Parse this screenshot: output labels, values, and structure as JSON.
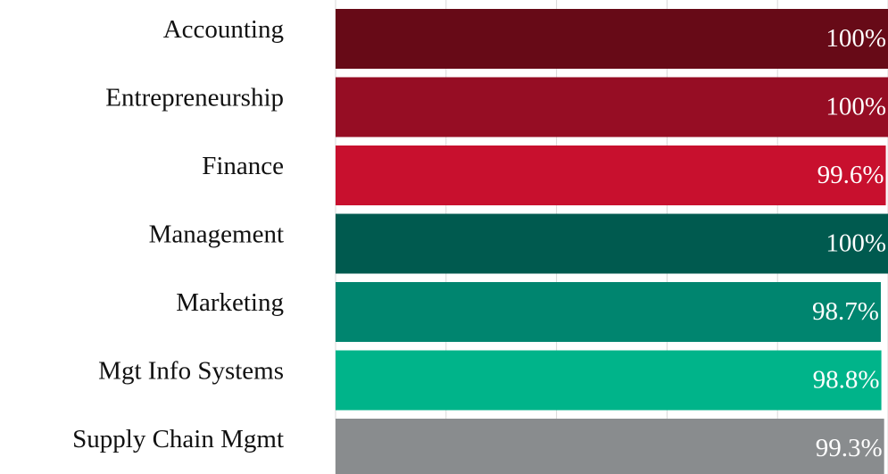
{
  "chart_data": {
    "type": "hbar",
    "categories": [
      "Accounting",
      "Entrepreneurship",
      "Finance",
      "Management",
      "Marketing",
      "Mgt Info Systems",
      "Supply Chain Mgmt"
    ],
    "values": [
      100,
      100,
      99.6,
      100,
      98.7,
      98.8,
      99.3
    ],
    "value_labels": [
      "100%",
      "100%",
      "99.6%",
      "100%",
      "98.7%",
      "98.8%",
      "99.3%"
    ],
    "colors": [
      "#670a17",
      "#960d24",
      "#c8102e",
      "#005a4f",
      "#00856f",
      "#00b48a",
      "#898c8e"
    ],
    "xlim": [
      0,
      100
    ],
    "xticks": [
      0,
      20,
      40,
      60,
      80,
      100
    ],
    "grid": true
  }
}
